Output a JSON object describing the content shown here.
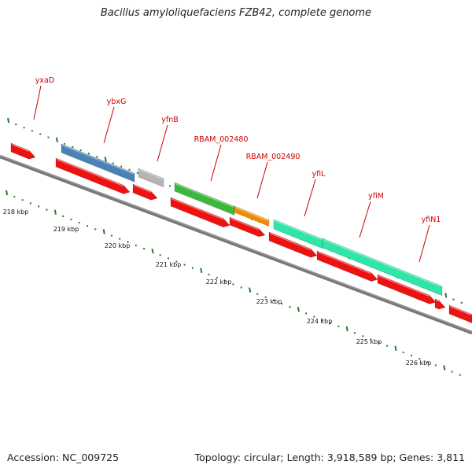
{
  "title": "Bacillus amyloliquefaciens FZB42, complete genome",
  "footer": {
    "accession": "Accession: NC_009725",
    "summary": "Topology: circular; Length: 3,918,589 bp; Genes: 3,811"
  },
  "colors": {
    "cds_red": "#ee1111",
    "backbone": "#777777",
    "tick_green": "#2a7a2a",
    "label_red": "#cc0000",
    "gene_blue": "#4a82b8",
    "gene_gray": "#b5b5b5",
    "gene_green": "#3cb83c",
    "gene_orange": "#f08c00",
    "gene_teal": "#2ee6a8"
  },
  "scale": {
    "unit": "kbp",
    "ticks": [
      {
        "label": "218 kbp"
      },
      {
        "label": "219 kbp"
      },
      {
        "label": "220 kbp"
      },
      {
        "label": "221 kbp"
      },
      {
        "label": "222 kbp"
      },
      {
        "label": "223 kbp"
      },
      {
        "label": "224 kbp"
      },
      {
        "label": "225 kbp"
      },
      {
        "label": "226 kbp"
      }
    ]
  },
  "genes": [
    {
      "name": "yxaD",
      "labeled": true,
      "color": "gene_blue"
    },
    {
      "name": "ybxG",
      "labeled": true,
      "color": "gene_blue"
    },
    {
      "name": "yfnB",
      "labeled": true,
      "color": "gene_gray"
    },
    {
      "name": "RBAM_002480",
      "labeled": true,
      "color": "gene_green"
    },
    {
      "name": "RBAM_002490",
      "labeled": true,
      "color": "gene_orange"
    },
    {
      "name": "yfiL",
      "labeled": true,
      "color": "gene_teal"
    },
    {
      "name": "yfiM",
      "labeled": true,
      "color": "gene_teal"
    },
    {
      "name": "yfiN1",
      "labeled": true,
      "color": "gene_teal"
    }
  ]
}
